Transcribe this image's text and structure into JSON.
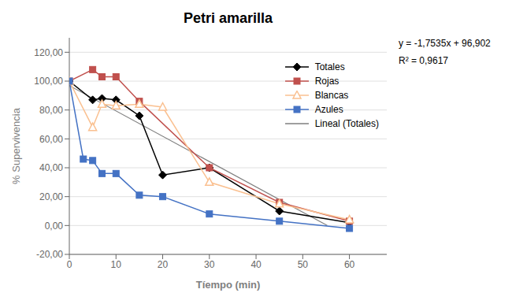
{
  "chart_data": {
    "type": "line",
    "title": "Petri amarilla",
    "xlabel": "Tíempo (min)",
    "ylabel": "% Supervivencia",
    "annotations": [
      "y = -1,7535x + 96,902",
      "R² = 0,9617"
    ],
    "series": [
      {
        "name": "Totales",
        "color": "#000000",
        "marker": "diamond",
        "x": [
          0,
          5,
          7,
          10,
          15,
          20,
          30,
          45,
          60
        ],
        "values": [
          100,
          87,
          88,
          87,
          76,
          35,
          40,
          10,
          2
        ]
      },
      {
        "name": "Rojas",
        "color": "#c0504d",
        "marker": "square",
        "x": [
          0,
          5,
          7,
          10,
          15,
          30,
          45,
          60
        ],
        "values": [
          100,
          108,
          103,
          103,
          86,
          40,
          16,
          3
        ]
      },
      {
        "name": "Blancas",
        "color": "#fac090",
        "marker": "triangle-open",
        "x": [
          0,
          5,
          7,
          10,
          15,
          20,
          30,
          45,
          60
        ],
        "values": [
          100,
          68,
          84,
          83,
          84,
          82,
          30,
          15,
          4
        ]
      },
      {
        "name": "Azules",
        "color": "#4472c4",
        "marker": "square",
        "x": [
          0,
          3,
          5,
          7,
          10,
          15,
          20,
          30,
          45,
          60
        ],
        "values": [
          100,
          46,
          45,
          36,
          36,
          21,
          20,
          8,
          3,
          -2
        ]
      },
      {
        "name": "Lineal (Totales)",
        "color": "#7f7f7f",
        "marker": "none",
        "x": [
          0,
          55.24
        ],
        "values": [
          96.902,
          0
        ]
      }
    ],
    "xlim": [
      0,
      68
    ],
    "ylim": [
      -20,
      130
    ],
    "xticks": [
      0,
      10,
      20,
      30,
      40,
      50,
      60
    ],
    "yticks": [
      {
        "value": -20,
        "label": "-20,00"
      },
      {
        "value": 0,
        "label": "0,00"
      },
      {
        "value": 20,
        "label": "20,00"
      },
      {
        "value": 40,
        "label": "40,00"
      },
      {
        "value": 60,
        "label": "60,00"
      },
      {
        "value": 80,
        "label": "80,00"
      },
      {
        "value": 100,
        "label": "100,00"
      },
      {
        "value": 120,
        "label": "120,00"
      }
    ],
    "grid": "y",
    "legend": "upper right"
  }
}
